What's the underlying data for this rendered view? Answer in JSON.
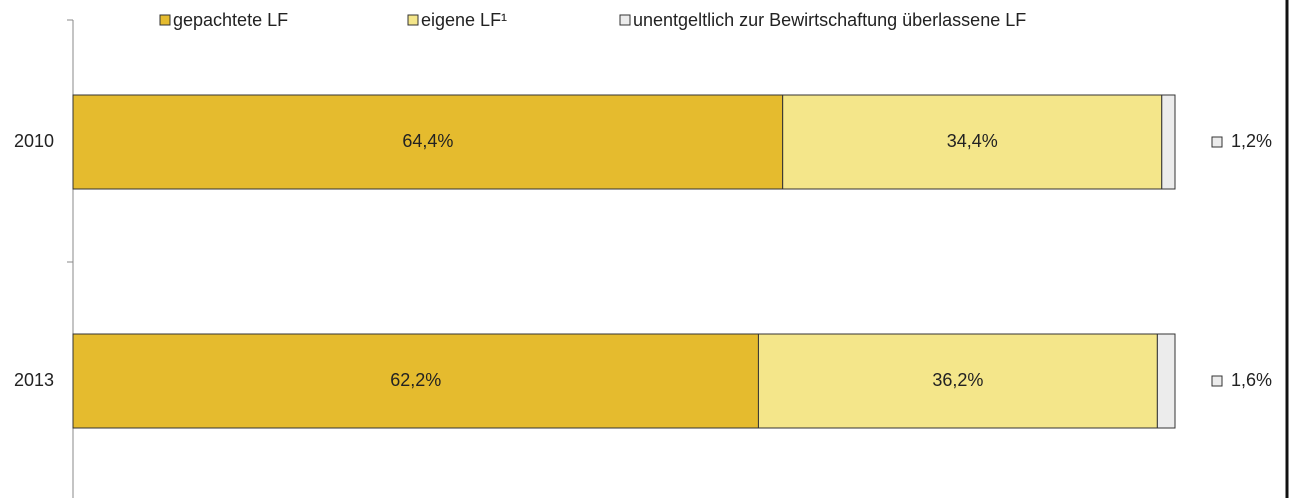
{
  "chart_data": {
    "type": "stacked-barh",
    "categories": [
      "2010",
      "2013"
    ],
    "series": [
      {
        "name": "gepachtete LF",
        "color": "#e5bb2e",
        "values": [
          64.4,
          62.2
        ],
        "value_labels": [
          "64,4%",
          "62,2%"
        ]
      },
      {
        "name": "eigene LF¹",
        "color": "#f4e68a",
        "values": [
          34.4,
          36.2
        ],
        "value_labels": [
          "34,4%",
          "36,2%"
        ]
      },
      {
        "name": "unentgeltlich zur Bewirtschaftung überlassene LF",
        "color": "#ececec",
        "values": [
          1.2,
          1.6
        ],
        "value_labels": [
          "1,2%",
          "1,6%"
        ]
      }
    ],
    "xlim": [
      0,
      100
    ],
    "legend": "top"
  }
}
